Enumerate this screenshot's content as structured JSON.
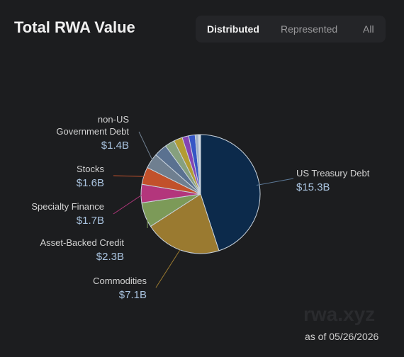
{
  "header": {
    "title": "Total RWA Value",
    "tabs": [
      "Distributed",
      "Represented",
      "All"
    ],
    "active_tab": "Distributed"
  },
  "chart_data": {
    "type": "pie",
    "categories": [
      "US Treasury Debt",
      "Commodities",
      "Asset-Backed Credit",
      "Specialty Finance",
      "Stocks",
      "non-US Government Debt",
      null,
      null,
      null,
      null,
      null,
      null,
      null
    ],
    "values": [
      15.3,
      7.1,
      2.3,
      1.7,
      1.6,
      1.4,
      1.2,
      0.9,
      0.8,
      0.6,
      0.6,
      0.3,
      0.2
    ],
    "value_labels": [
      "$15.3B",
      "$7.1B",
      "$2.3B",
      "$1.7B",
      "$1.6B",
      "$1.4B",
      null,
      null,
      null,
      null,
      null,
      null,
      null
    ],
    "colors": [
      "#0c2a4b",
      "#9a7a30",
      "#7c9a58",
      "#b3367c",
      "#c2512b",
      "#6f7f90",
      "#5a7190",
      "#86a07e",
      "#b39c32",
      "#8444b4",
      "#3556c6",
      "#9fb0c8",
      "#d4dbe2"
    ]
  },
  "footer": {
    "as_of": "as of 05/26/2026",
    "watermark": "rwa.xyz"
  }
}
